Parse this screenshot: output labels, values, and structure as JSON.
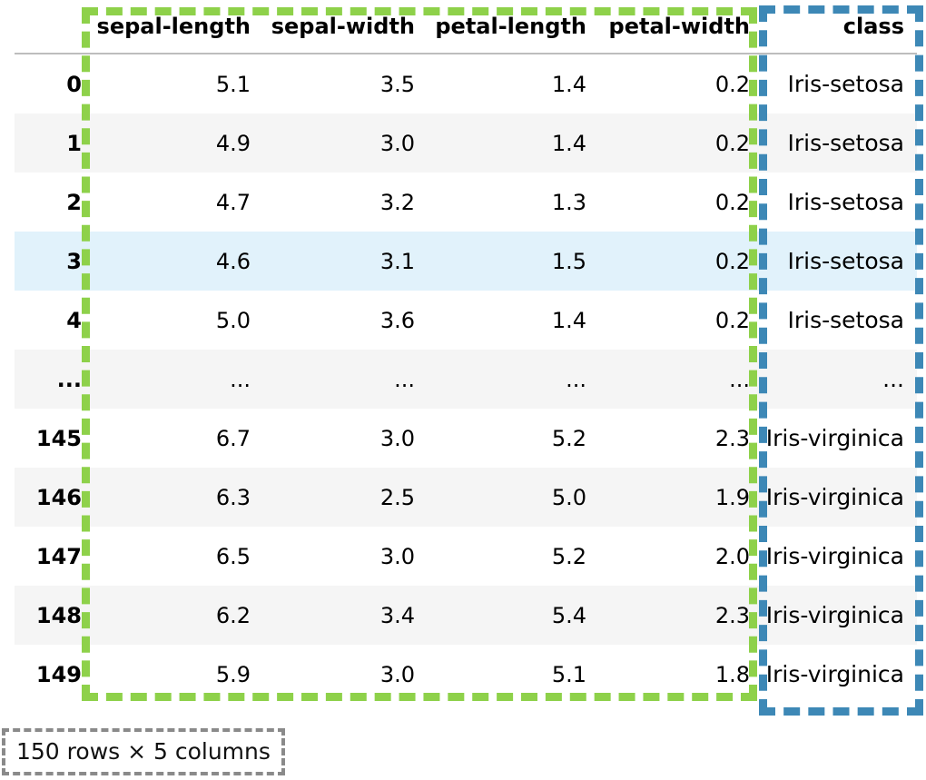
{
  "dataframe": {
    "columns": [
      "sepal-length",
      "sepal-width",
      "petal-length",
      "petal-width",
      "class"
    ],
    "rows": [
      {
        "index": "0",
        "values": [
          "5.1",
          "3.5",
          "1.4",
          "0.2",
          "Iris-setosa"
        ]
      },
      {
        "index": "1",
        "values": [
          "4.9",
          "3.0",
          "1.4",
          "0.2",
          "Iris-setosa"
        ]
      },
      {
        "index": "2",
        "values": [
          "4.7",
          "3.2",
          "1.3",
          "0.2",
          "Iris-setosa"
        ]
      },
      {
        "index": "3",
        "values": [
          "4.6",
          "3.1",
          "1.5",
          "0.2",
          "Iris-setosa"
        ]
      },
      {
        "index": "4",
        "values": [
          "5.0",
          "3.6",
          "1.4",
          "0.2",
          "Iris-setosa"
        ]
      },
      {
        "index": "...",
        "values": [
          "...",
          "...",
          "...",
          "...",
          "..."
        ]
      },
      {
        "index": "145",
        "values": [
          "6.7",
          "3.0",
          "5.2",
          "2.3",
          "Iris-virginica"
        ]
      },
      {
        "index": "146",
        "values": [
          "6.3",
          "2.5",
          "5.0",
          "1.9",
          "Iris-virginica"
        ]
      },
      {
        "index": "147",
        "values": [
          "6.5",
          "3.0",
          "5.2",
          "2.0",
          "Iris-virginica"
        ]
      },
      {
        "index": "148",
        "values": [
          "6.2",
          "3.4",
          "5.4",
          "2.3",
          "Iris-virginica"
        ]
      },
      {
        "index": "149",
        "values": [
          "5.9",
          "3.0",
          "5.1",
          "1.8",
          "Iris-virginica"
        ]
      }
    ],
    "hovered_row": 3,
    "shape_text": "150 rows × 5 columns"
  },
  "colors": {
    "numeric_highlight": "#8ed14a",
    "class_highlight": "#3d88b6",
    "hover_row": "#e1f2fb",
    "striped_row": "#f5f5f5"
  }
}
